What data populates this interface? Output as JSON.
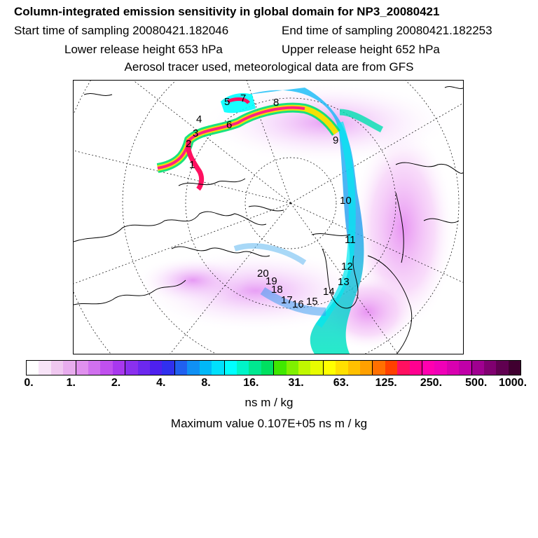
{
  "title": "Column-integrated emission sensitivity in global domain for NP3_20080421",
  "sampling": {
    "start": "Start time of sampling 20080421.182046",
    "end": "End time of sampling 20080421.182253"
  },
  "release": {
    "lower": "Lower release height  653 hPa",
    "upper": "Upper release height  652 hPa"
  },
  "subtitle": "Aerosol tracer used, meteorological data are from GFS",
  "colorbar": {
    "colors": [
      "#ffffff",
      "#f8e4f8",
      "#f0c8f0",
      "#e8acee",
      "#e090ee",
      "#d070ee",
      "#c050ee",
      "#a838ee",
      "#8a30ee",
      "#6c28ee",
      "#4e20ee",
      "#3030ee",
      "#2060f0",
      "#1090f4",
      "#00b8f8",
      "#00e0fc",
      "#00ffff",
      "#00f4c8",
      "#00e890",
      "#00e060",
      "#40e800",
      "#80f000",
      "#c0f800",
      "#e8fc00",
      "#ffff00",
      "#ffe000",
      "#ffc000",
      "#ffa000",
      "#ff7000",
      "#ff4000",
      "#ff1060",
      "#ff0090",
      "#ff00b0",
      "#f000b8",
      "#d800b0",
      "#c000a8",
      "#a00090",
      "#800070",
      "#600050",
      "#400030"
    ],
    "tick_labels": [
      "0.",
      "1.",
      "2.",
      "4.",
      "8.",
      "16.",
      "31.",
      "63.",
      "125.",
      "250.",
      "500.",
      "1000."
    ],
    "unit": "ns m / kg"
  },
  "max_value": "Maximum value  0.107E+05 ns m / kg",
  "trajectory_labels": [
    "1",
    "2",
    "3",
    "4",
    "5",
    "6",
    "7",
    "8",
    "9",
    "10",
    "11",
    "12",
    "13",
    "14",
    "15",
    "16",
    "17",
    "18",
    "19",
    "20"
  ]
}
